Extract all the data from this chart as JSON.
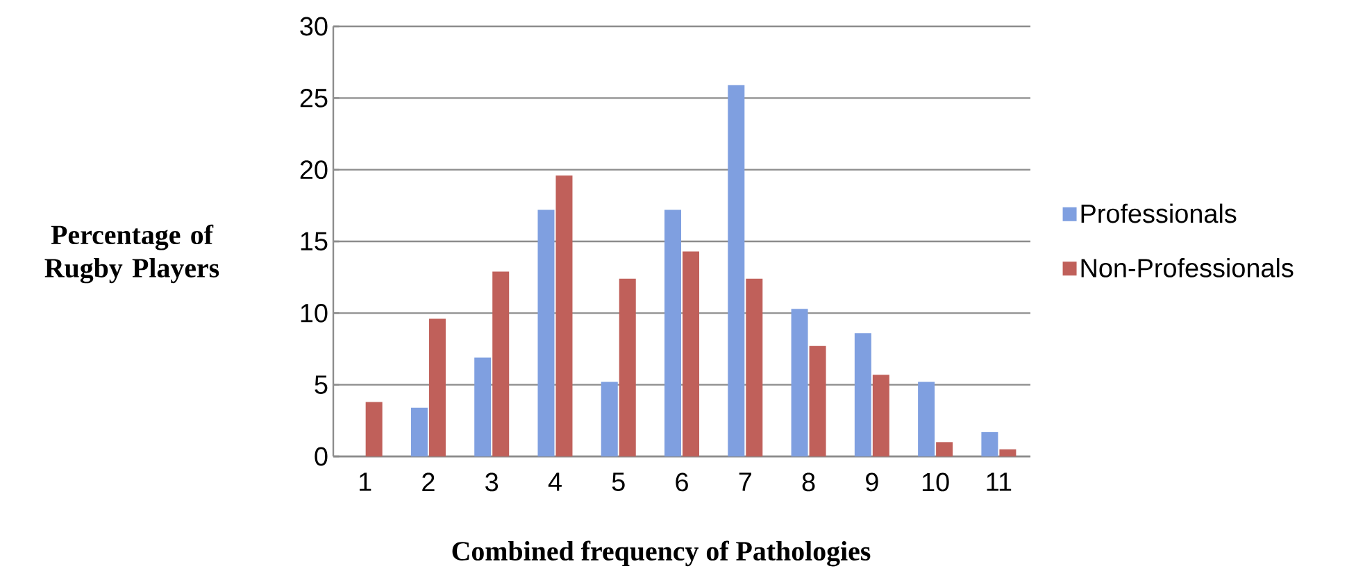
{
  "chart_data": {
    "type": "bar",
    "xlabel": "Combined frequency of Pathologies",
    "ylabel": "Percentage of Rugby Players",
    "categories": [
      "1",
      "2",
      "3",
      "4",
      "5",
      "6",
      "7",
      "8",
      "9",
      "10",
      "11"
    ],
    "series": [
      {
        "name": "Professionals",
        "color": "#7f9fe0",
        "values": [
          0,
          3.4,
          6.9,
          17.2,
          5.2,
          17.2,
          25.9,
          10.3,
          8.6,
          5.2,
          1.7
        ]
      },
      {
        "name": "Non-Professionals",
        "color": "#c0605a",
        "values": [
          3.8,
          9.6,
          12.9,
          19.6,
          12.4,
          14.3,
          12.4,
          7.7,
          5.7,
          1.0,
          0.5
        ]
      }
    ],
    "ylim": [
      0,
      30
    ],
    "yticks": [
      0,
      5,
      10,
      15,
      20,
      25,
      30
    ],
    "grid": "y",
    "legend": "right"
  }
}
